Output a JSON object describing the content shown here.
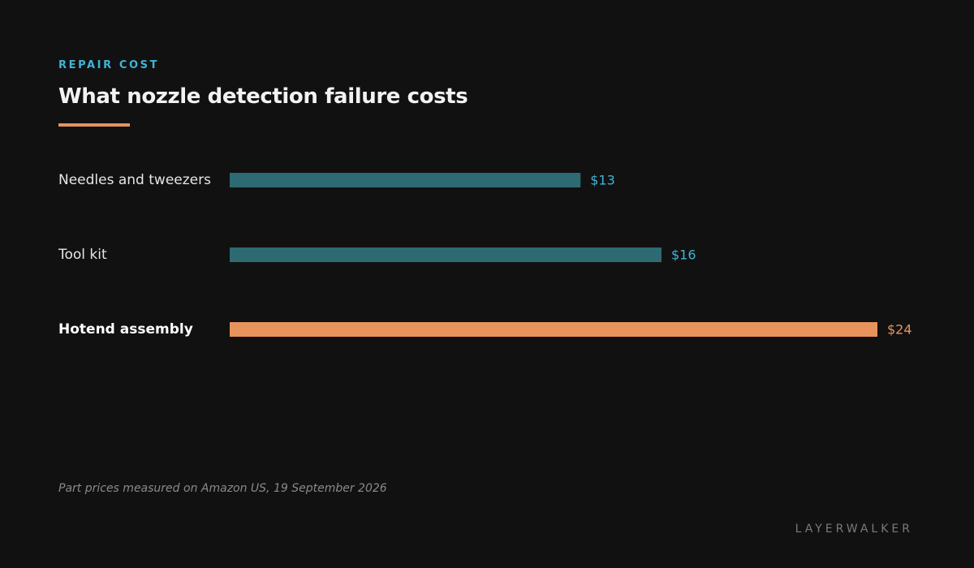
{
  "header": {
    "eyebrow": "REPAIR COST",
    "title": "What nozzle detection failure costs"
  },
  "footnote": "Part prices measured on Amazon US, 19 September 2026",
  "brand": "LAYERWALKER",
  "colors": {
    "background": "#111111",
    "bar_default": "#2e6a72",
    "bar_highlight": "#e8935c",
    "value_default": "#3fb4d6",
    "value_highlight": "#e8935c",
    "accent_rule": "#e8935c",
    "eyebrow": "#3fb4d6"
  },
  "chart_data": {
    "type": "bar",
    "orientation": "horizontal",
    "title": "What nozzle detection failure costs",
    "subtitle": "REPAIR COST",
    "xlabel": "",
    "ylabel": "",
    "categories": [
      "Needles and tweezers",
      "Tool kit",
      "Hotend assembly"
    ],
    "values": [
      13,
      16,
      24
    ],
    "value_labels": [
      "$13",
      "$16",
      "$24"
    ],
    "unit": "$",
    "highlight_index": 2,
    "xlim": [
      0,
      24
    ],
    "grid": false,
    "legend": "none"
  }
}
